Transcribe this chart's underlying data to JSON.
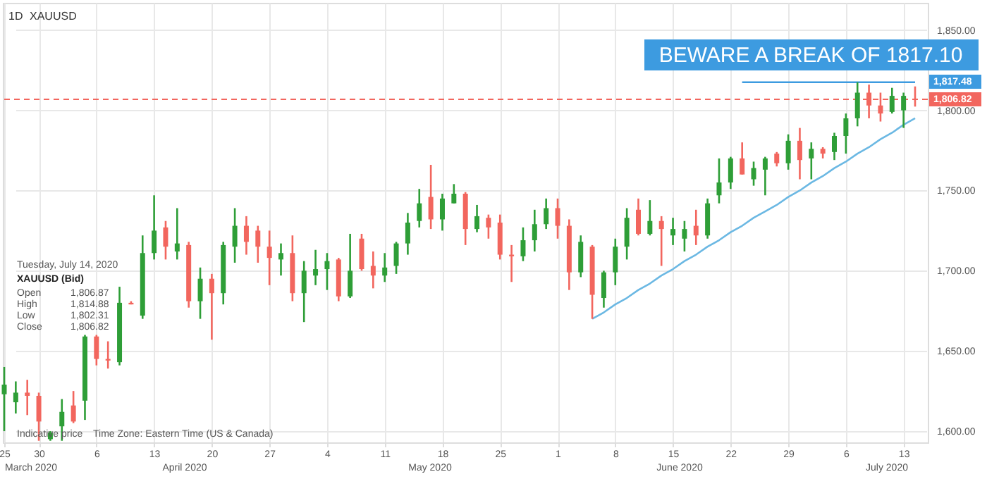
{
  "chart_data": {
    "type": "candlestick",
    "categories": [
      "25",
      null,
      null,
      "30",
      null,
      null,
      null,
      null,
      "6",
      null,
      null,
      null,
      null,
      "13",
      null,
      null,
      null,
      null,
      "20",
      null,
      null,
      null,
      null,
      "27",
      null,
      null,
      null,
      null,
      "4",
      null,
      null,
      null,
      null,
      "11",
      null,
      null,
      null,
      null,
      "18",
      null,
      null,
      null,
      null,
      "25",
      null,
      null,
      null,
      null,
      "1",
      null,
      null,
      null,
      null,
      "8",
      null,
      null,
      null,
      null,
      "15",
      null,
      null,
      null,
      null,
      "22",
      null,
      null,
      null,
      null,
      "29",
      null,
      null,
      null,
      null,
      "6",
      null,
      null,
      null,
      null,
      "13",
      null
    ],
    "ohlc": [
      [
        1623,
        1640,
        1600,
        1629
      ],
      [
        1618,
        1631,
        1611,
        1624
      ],
      [
        1624,
        1632,
        1610,
        1622
      ],
      [
        1622,
        1624,
        1594,
        1606
      ],
      [
        1595,
        1600,
        1594,
        1599
      ],
      [
        1603,
        1620,
        1594,
        1612
      ],
      [
        1616,
        1625,
        1605,
        1606
      ],
      [
        1619,
        1660,
        1607,
        1659
      ],
      [
        1659,
        1660,
        1641,
        1645
      ],
      [
        1645,
        1656,
        1639,
        1644
      ],
      [
        1643,
        1690,
        1641,
        1680
      ],
      [
        1680,
        1681,
        1679,
        1679
      ],
      [
        1672,
        1722,
        1670,
        1711
      ],
      [
        1711,
        1747,
        1707,
        1725
      ],
      [
        1727,
        1731,
        1707,
        1715
      ],
      [
        1712,
        1739,
        1707,
        1717
      ],
      [
        1716,
        1718,
        1677,
        1681
      ],
      [
        1681,
        1702,
        1670,
        1695
      ],
      [
        1695,
        1698,
        1657,
        1686
      ],
      [
        1686,
        1718,
        1679,
        1716
      ],
      [
        1715,
        1739,
        1705,
        1728
      ],
      [
        1728,
        1734,
        1710,
        1718
      ],
      [
        1725,
        1728,
        1705,
        1715
      ],
      [
        1715,
        1725,
        1691,
        1708
      ],
      [
        1707,
        1717,
        1697,
        1711
      ],
      [
        1711,
        1722,
        1681,
        1686
      ],
      [
        1686,
        1706,
        1668,
        1700
      ],
      [
        1697,
        1713,
        1691,
        1701
      ],
      [
        1701,
        1711,
        1688,
        1706
      ],
      [
        1707,
        1708,
        1681,
        1684
      ],
      [
        1684,
        1723,
        1683,
        1700
      ],
      [
        1720,
        1723,
        1700,
        1701
      ],
      [
        1703,
        1712,
        1689,
        1697
      ],
      [
        1697,
        1711,
        1693,
        1702
      ],
      [
        1703,
        1718,
        1698,
        1717
      ],
      [
        1717,
        1736,
        1710,
        1730
      ],
      [
        1731,
        1751,
        1727,
        1742
      ],
      [
        1746,
        1766,
        1726,
        1732
      ],
      [
        1732,
        1748,
        1725,
        1745
      ],
      [
        1742,
        1754,
        1742,
        1748
      ],
      [
        1748,
        1749,
        1716,
        1726
      ],
      [
        1726,
        1741,
        1724,
        1734
      ],
      [
        1733,
        1735,
        1720,
        1727
      ],
      [
        1730,
        1735,
        1707,
        1710
      ],
      [
        1710,
        1716,
        1693,
        1709
      ],
      [
        1709,
        1727,
        1706,
        1719
      ],
      [
        1719,
        1738,
        1712,
        1729
      ],
      [
        1729,
        1745,
        1726,
        1739
      ],
      [
        1739,
        1745,
        1720,
        1728
      ],
      [
        1728,
        1732,
        1688,
        1699
      ],
      [
        1699,
        1722,
        1696,
        1718
      ],
      [
        1715,
        1716,
        1670,
        1685
      ],
      [
        1683,
        1700,
        1677,
        1699
      ],
      [
        1699,
        1720,
        1691,
        1715
      ],
      [
        1715,
        1739,
        1707,
        1733
      ],
      [
        1738,
        1745,
        1722,
        1723
      ],
      [
        1723,
        1744,
        1722,
        1731
      ],
      [
        1731,
        1734,
        1703,
        1726
      ],
      [
        1722,
        1733,
        1716,
        1726
      ],
      [
        1720,
        1731,
        1712,
        1726
      ],
      [
        1728,
        1738,
        1716,
        1722
      ],
      [
        1722,
        1745,
        1720,
        1742
      ],
      [
        1747,
        1770,
        1742,
        1755
      ],
      [
        1755,
        1771,
        1751,
        1770
      ],
      [
        1770,
        1780,
        1760,
        1760
      ],
      [
        1757,
        1768,
        1753,
        1764
      ],
      [
        1763,
        1771,
        1747,
        1770
      ],
      [
        1773,
        1774,
        1765,
        1767
      ],
      [
        1767,
        1785,
        1763,
        1781
      ],
      [
        1781,
        1789,
        1757,
        1769
      ],
      [
        1770,
        1780,
        1757,
        1776
      ],
      [
        1776,
        1777,
        1770,
        1773
      ],
      [
        1774,
        1786,
        1769,
        1784
      ],
      [
        1784,
        1798,
        1773,
        1795
      ],
      [
        1795,
        1817.5,
        1790,
        1811
      ],
      [
        1811,
        1816,
        1795,
        1803
      ],
      [
        1803,
        1811,
        1793,
        1798
      ],
      [
        1799,
        1814,
        1798,
        1809
      ],
      [
        1800,
        1811,
        1789,
        1809
      ],
      [
        1806.87,
        1814.88,
        1802.31,
        1806.82
      ]
    ],
    "colors": [
      "#2e9e37",
      "#2e9e37",
      "#f2665e",
      "#f2665e",
      "#2e9e37",
      "#2e9e37",
      "#f2665e",
      "#2e9e37",
      "#f2665e",
      "#f2665e",
      "#2e9e37",
      "#f2665e",
      "#2e9e37",
      "#2e9e37",
      "#f2665e",
      "#2e9e37",
      "#f2665e",
      "#2e9e37",
      "#f2665e",
      "#2e9e37",
      "#2e9e37",
      "#f2665e",
      "#f2665e",
      "#f2665e",
      "#2e9e37",
      "#f2665e",
      "#2e9e37",
      "#2e9e37",
      "#2e9e37",
      "#f2665e",
      "#2e9e37",
      "#f2665e",
      "#f2665e",
      "#2e9e37",
      "#2e9e37",
      "#2e9e37",
      "#2e9e37",
      "#f2665e",
      "#2e9e37",
      "#2e9e37",
      "#f2665e",
      "#2e9e37",
      "#f2665e",
      "#f2665e",
      "#f2665e",
      "#2e9e37",
      "#2e9e37",
      "#2e9e37",
      "#f2665e",
      "#f2665e",
      "#2e9e37",
      "#f2665e",
      "#2e9e37",
      "#2e9e37",
      "#2e9e37",
      "#f2665e",
      "#2e9e37",
      "#f2665e",
      "#2e9e37",
      "#2e9e37",
      "#f2665e",
      "#2e9e37",
      "#2e9e37",
      "#2e9e37",
      "#f2665e",
      "#2e9e37",
      "#2e9e37",
      "#f2665e",
      "#2e9e37",
      "#f2665e",
      "#2e9e37",
      "#f2665e",
      "#2e9e37",
      "#2e9e37",
      "#2e9e37",
      "#f2665e",
      "#f2665e",
      "#2e9e37",
      "#2e9e37",
      "#f2665e"
    ],
    "series": [
      {
        "type": "line",
        "color": "#6bb8e3",
        "values": [
          null,
          null,
          null,
          null,
          null,
          null,
          null,
          null,
          null,
          null,
          null,
          null,
          null,
          null,
          null,
          null,
          null,
          null,
          null,
          null,
          null,
          null,
          null,
          null,
          null,
          null,
          null,
          null,
          null,
          null,
          null,
          null,
          null,
          null,
          null,
          null,
          null,
          null,
          null,
          null,
          null,
          null,
          null,
          null,
          null,
          null,
          null,
          null,
          null,
          null,
          null,
          1670,
          1674,
          1679,
          1683,
          1688,
          1692,
          1697,
          1701,
          1706,
          1710,
          1715,
          1719,
          1724,
          1728,
          1733,
          1737,
          1741,
          1746,
          1750,
          1755,
          1759,
          1764,
          1768,
          1773,
          1777,
          1782,
          1786,
          1791,
          1795
        ]
      },
      {
        "type": "line",
        "color": "#3d9be0",
        "values": [
          null,
          null,
          null,
          null,
          null,
          null,
          null,
          null,
          null,
          null,
          null,
          null,
          null,
          null,
          null,
          null,
          null,
          null,
          null,
          null,
          null,
          null,
          null,
          null,
          null,
          null,
          null,
          null,
          null,
          null,
          null,
          null,
          null,
          null,
          null,
          null,
          null,
          null,
          null,
          null,
          null,
          null,
          null,
          null,
          null,
          null,
          null,
          null,
          null,
          null,
          null,
          null,
          null,
          null,
          null,
          null,
          null,
          null,
          null,
          null,
          null,
          null,
          null,
          null,
          1817.48,
          1817.48,
          1817.48,
          1817.48,
          1817.48,
          1817.48,
          1817.48,
          1817.48,
          1817.48,
          1817.48,
          1817.48,
          1817.48,
          1817.48,
          1817.48,
          1817.48,
          1817.48
        ]
      }
    ],
    "ref_lines": [
      {
        "axis": "y",
        "value": 1806.82,
        "label": "1,806.82",
        "color": "#f2665e",
        "line_style": "dashed"
      }
    ],
    "ylim": [
      1593,
      1867
    ],
    "yticks": [
      {
        "value": 1600,
        "label": "1,600.00"
      },
      {
        "value": 1650,
        "label": "1,650.00"
      },
      {
        "value": 1700,
        "label": "1,700.00"
      },
      {
        "value": 1750,
        "label": "1,750.00"
      },
      {
        "value": 1800,
        "label": "1,800.00"
      },
      {
        "value": 1850,
        "label": "1,850.00"
      }
    ],
    "grid": true,
    "annotations": [
      "1D",
      "XAUUSD",
      "BEWARE A BREAK OF 1817.10",
      "Tuesday, July 14, 2020",
      "XAUUSD (Bid)",
      "Open",
      "1,806.87",
      "High",
      "1,814.88",
      "Low",
      "1,802.31",
      "Close",
      "1,806.82",
      "Indicative price",
      "Time Zone: Eastern Time (US & Canada)",
      "March 2020",
      "April 2020",
      "May 2020",
      "June 2020",
      "July 2020",
      "1,817.48"
    ]
  }
}
